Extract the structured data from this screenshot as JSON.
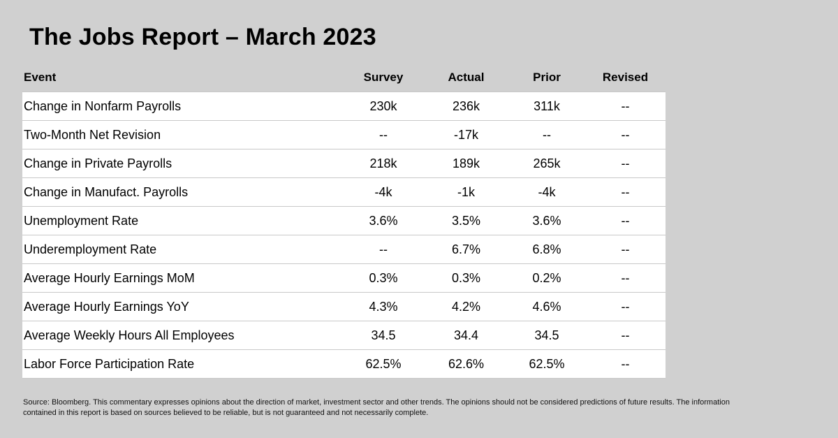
{
  "title": "The Jobs Report – March 2023",
  "headers": {
    "event": "Event",
    "survey": "Survey",
    "actual": "Actual",
    "prior": "Prior",
    "revised": "Revised"
  },
  "rows": [
    {
      "event": "Change in Nonfarm Payrolls",
      "survey": "230k",
      "actual": "236k",
      "prior": "311k",
      "revised": "--"
    },
    {
      "event": "Two-Month Net Revision",
      "survey": "--",
      "actual": "-17k",
      "prior": "--",
      "revised": "--"
    },
    {
      "event": "Change in Private Payrolls",
      "survey": "218k",
      "actual": "189k",
      "prior": "265k",
      "revised": "--"
    },
    {
      "event": "Change in Manufact. Payrolls",
      "survey": "-4k",
      "actual": "-1k",
      "prior": "-4k",
      "revised": "--"
    },
    {
      "event": "Unemployment Rate",
      "survey": "3.6%",
      "actual": "3.5%",
      "prior": "3.6%",
      "revised": "--"
    },
    {
      "event": "Underemployment Rate",
      "survey": "--",
      "actual": "6.7%",
      "prior": "6.8%",
      "revised": "--"
    },
    {
      "event": "Average Hourly Earnings MoM",
      "survey": "0.3%",
      "actual": "0.3%",
      "prior": "0.2%",
      "revised": "--"
    },
    {
      "event": "Average Hourly Earnings YoY",
      "survey": "4.3%",
      "actual": "4.2%",
      "prior": "4.6%",
      "revised": "--"
    },
    {
      "event": "Average Weekly Hours All Employees",
      "survey": "34.5",
      "actual": "34.4",
      "prior": "34.5",
      "revised": "--"
    },
    {
      "event": "Labor Force Participation Rate",
      "survey": "62.5%",
      "actual": "62.6%",
      "prior": "62.5%",
      "revised": "--"
    }
  ],
  "footer": "Source: Bloomberg. This commentary expresses opinions about the direction of market, investment sector and other trends. The opinions should not be considered predictions of future results. The information contained in this report is based on sources believed to be reliable, but is not guaranteed and not necessarily complete."
}
